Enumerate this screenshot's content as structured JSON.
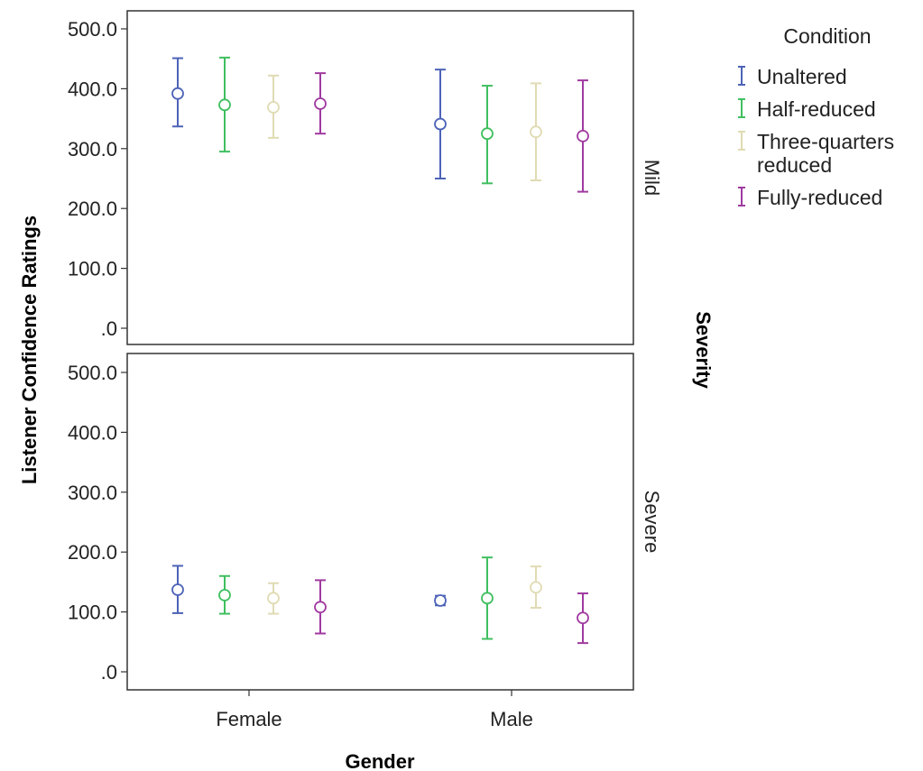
{
  "chart_data": {
    "type": "errorbar",
    "x_label": "Gender",
    "y_label": "Listener Confidence Ratings",
    "facet_label": "Severity",
    "categories": [
      "Female",
      "Male"
    ],
    "y_ticks": [
      ".0",
      "100.0",
      "200.0",
      "300.0",
      "400.0",
      "500.0"
    ],
    "ylim": [
      0,
      500
    ],
    "grid": false,
    "legend": {
      "title": "Condition",
      "position": "right",
      "entries": [
        {
          "lines": [
            "Unaltered"
          ],
          "color": "#4d63b7"
        },
        {
          "lines": [
            "Half-reduced"
          ],
          "color": "#3fbf5f"
        },
        {
          "lines": [
            "Three-quarters",
            "reduced"
          ],
          "color": "#e0dbb3"
        },
        {
          "lines": [
            "Fully-reduced"
          ],
          "color": "#a03aa0"
        }
      ]
    },
    "series": [
      {
        "name": "Unaltered",
        "color": "#4d63b7"
      },
      {
        "name": "Half-reduced",
        "color": "#3fbf5f"
      },
      {
        "name": "Three-quarters reduced",
        "color": "#e0dbb3"
      },
      {
        "name": "Fully-reduced",
        "color": "#a03aa0"
      }
    ],
    "panels": [
      {
        "label": "Mild",
        "data": {
          "Female": [
            {
              "mean": 392,
              "low": 337,
              "high": 451
            },
            {
              "mean": 373,
              "low": 295,
              "high": 452
            },
            {
              "mean": 369,
              "low": 318,
              "high": 422
            },
            {
              "mean": 375,
              "low": 325,
              "high": 426
            }
          ],
          "Male": [
            {
              "mean": 341,
              "low": 250,
              "high": 432
            },
            {
              "mean": 325,
              "low": 242,
              "high": 405
            },
            {
              "mean": 328,
              "low": 247,
              "high": 409
            },
            {
              "mean": 321,
              "low": 228,
              "high": 414
            }
          ]
        }
      },
      {
        "label": "Severe",
        "data": {
          "Female": [
            {
              "mean": 137,
              "low": 98,
              "high": 177
            },
            {
              "mean": 128,
              "low": 97,
              "high": 160
            },
            {
              "mean": 123,
              "low": 97,
              "high": 148
            },
            {
              "mean": 108,
              "low": 64,
              "high": 153
            }
          ],
          "Male": [
            {
              "mean": 119,
              "low": 111,
              "high": 127
            },
            {
              "mean": 123,
              "low": 55,
              "high": 191
            },
            {
              "mean": 141,
              "low": 107,
              "high": 176
            },
            {
              "mean": 90,
              "low": 48,
              "high": 131
            }
          ]
        }
      }
    ]
  }
}
